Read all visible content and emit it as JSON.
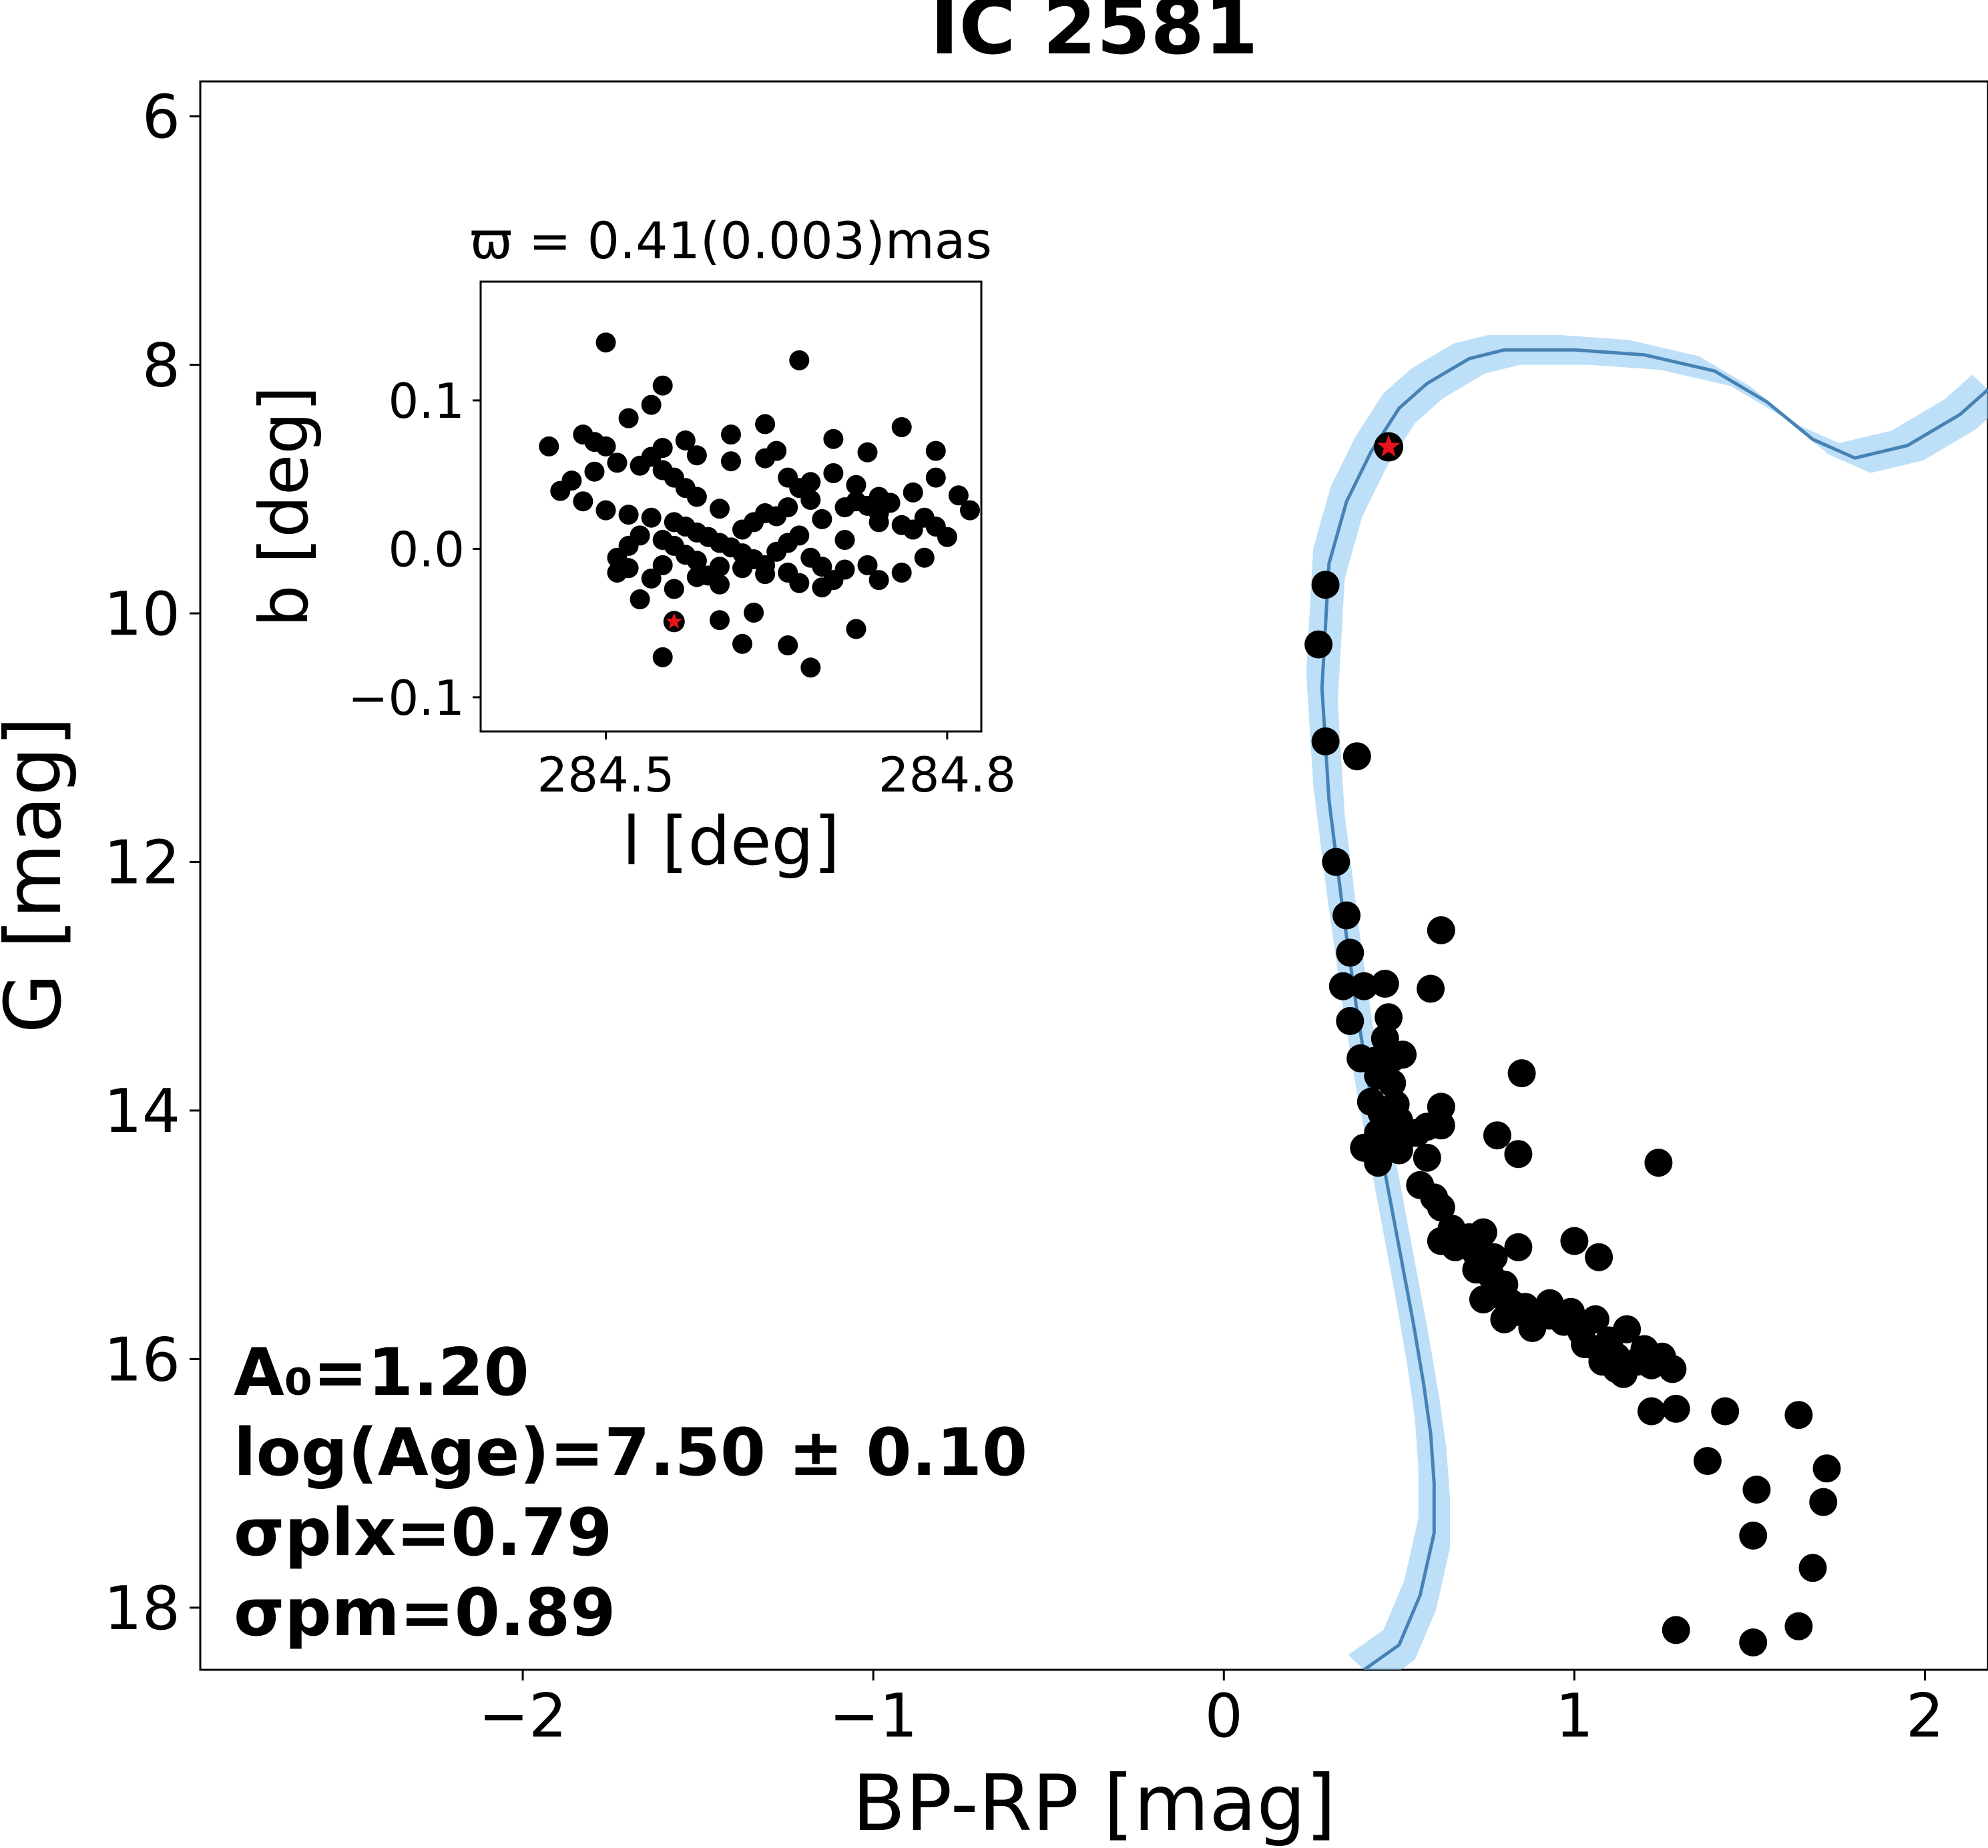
{
  "chart_data": [
    {
      "type": "scatter",
      "title": "IC 2581",
      "xlabel": "BP-RP [mag]",
      "ylabel": "G [mag]",
      "xlim": [
        -2.92,
        2.18
      ],
      "ylim": [
        18.5,
        5.72
      ],
      "y_inverted": true,
      "xticks": [
        -2,
        -1,
        0,
        1,
        2
      ],
      "xtick_labels": [
        "−2",
        "−1",
        "0",
        "1",
        "2"
      ],
      "yticks": [
        6,
        8,
        10,
        12,
        14,
        16,
        18
      ],
      "ytick_labels": [
        "6",
        "8",
        "10",
        "12",
        "14",
        "16",
        "18"
      ],
      "colors": {
        "members": "#000000",
        "isochrone_line": "#4682b4",
        "isochrone_band": "#87c5f0",
        "highlight_star": "#e8141c"
      },
      "annotations": {
        "a0": "A₀=1.20",
        "age": "log(Age)=7.50 ± 0.10",
        "sigma_plx": "σplx=0.79",
        "sigma_pm": "σpm=0.89"
      },
      "highlight_star": {
        "x": 0.47,
        "y": 8.66
      },
      "series": [
        {
          "type": "scatter",
          "points": [
            [
              0.29,
              9.77
            ],
            [
              0.27,
              10.25
            ],
            [
              0.29,
              11.03
            ],
            [
              0.38,
              11.15
            ],
            [
              0.32,
              12.0
            ],
            [
              0.35,
              12.43
            ],
            [
              0.36,
              12.73
            ],
            [
              0.34,
              13.0
            ],
            [
              0.36,
              13.28
            ],
            [
              0.4,
              13.0
            ],
            [
              0.46,
              12.98
            ],
            [
              0.47,
              13.25
            ],
            [
              0.46,
              13.42
            ],
            [
              0.48,
              13.58
            ],
            [
              0.39,
              13.58
            ],
            [
              0.43,
              13.6
            ],
            [
              0.51,
              13.55
            ],
            [
              0.44,
              13.72
            ],
            [
              0.48,
              13.78
            ],
            [
              0.49,
              13.95
            ],
            [
              0.42,
              13.93
            ],
            [
              0.45,
              14.02
            ],
            [
              0.5,
              14.08
            ],
            [
              0.44,
              14.18
            ],
            [
              0.51,
              14.22
            ],
            [
              0.46,
              14.28
            ],
            [
              0.4,
              14.3
            ],
            [
              0.5,
              14.32
            ],
            [
              0.44,
              14.42
            ],
            [
              0.55,
              14.18
            ],
            [
              0.58,
              14.38
            ],
            [
              0.58,
              14.13
            ],
            [
              0.62,
              14.12
            ],
            [
              0.62,
              13.97
            ],
            [
              0.59,
              13.02
            ],
            [
              0.62,
              12.55
            ],
            [
              0.78,
              14.2
            ],
            [
              0.84,
              14.35
            ],
            [
              0.85,
              13.7
            ],
            [
              1.24,
              14.42
            ],
            [
              0.56,
              14.6
            ],
            [
              0.6,
              14.7
            ],
            [
              0.62,
              14.78
            ],
            [
              0.65,
              14.95
            ],
            [
              0.62,
              15.05
            ],
            [
              0.66,
              15.1
            ],
            [
              0.7,
              15.02
            ],
            [
              0.72,
              15.15
            ],
            [
              0.74,
              14.98
            ],
            [
              0.77,
              15.18
            ],
            [
              0.72,
              15.28
            ],
            [
              0.76,
              15.32
            ],
            [
              0.8,
              15.4
            ],
            [
              0.78,
              15.48
            ],
            [
              0.74,
              15.52
            ],
            [
              0.82,
              15.55
            ],
            [
              0.84,
              15.62
            ],
            [
              0.86,
              15.58
            ],
            [
              0.8,
              15.68
            ],
            [
              0.84,
              15.1
            ],
            [
              0.88,
              15.75
            ],
            [
              0.93,
              15.65
            ],
            [
              0.97,
              15.7
            ],
            [
              0.99,
              15.62
            ],
            [
              1.02,
              15.78
            ],
            [
              1.06,
              15.68
            ],
            [
              1.03,
              15.88
            ],
            [
              1.07,
              15.92
            ],
            [
              1.1,
              15.85
            ],
            [
              1.12,
              15.98
            ],
            [
              1.15,
              15.76
            ],
            [
              1.18,
              16.02
            ],
            [
              1.12,
              16.08
            ],
            [
              1.2,
              15.92
            ],
            [
              1.22,
              16.05
            ],
            [
              1.14,
              16.12
            ],
            [
              1.08,
              16.02
            ],
            [
              1.25,
              15.98
            ],
            [
              1.28,
              16.08
            ],
            [
              1.0,
              15.05
            ],
            [
              1.07,
              15.18
            ],
            [
              0.93,
              15.55
            ],
            [
              1.22,
              16.42
            ],
            [
              1.29,
              16.4
            ],
            [
              1.43,
              16.42
            ],
            [
              1.38,
              16.82
            ],
            [
              1.52,
              17.05
            ],
            [
              1.51,
              17.42
            ],
            [
              1.64,
              16.45
            ],
            [
              1.72,
              16.88
            ],
            [
              1.71,
              17.15
            ],
            [
              1.68,
              17.68
            ],
            [
              1.64,
              18.15
            ],
            [
              1.29,
              18.18
            ],
            [
              1.51,
              18.28
            ]
          ]
        },
        {
          "type": "line",
          "name": "",
          "points": [
            [
              0.4,
              18.5
            ],
            [
              0.5,
              18.3
            ],
            [
              0.56,
              17.9
            ],
            [
              0.6,
              17.4
            ],
            [
              0.6,
              17.0
            ],
            [
              0.59,
              16.6
            ],
            [
              0.57,
              16.2
            ],
            [
              0.54,
              15.7
            ],
            [
              0.5,
              15.1
            ],
            [
              0.46,
              14.5
            ],
            [
              0.42,
              13.9
            ],
            [
              0.38,
              13.2
            ],
            [
              0.34,
              12.4
            ],
            [
              0.3,
              11.5
            ],
            [
              0.28,
              10.6
            ],
            [
              0.3,
              9.6
            ],
            [
              0.35,
              9.1
            ],
            [
              0.42,
              8.7
            ],
            [
              0.5,
              8.35
            ],
            [
              0.58,
              8.15
            ],
            [
              0.7,
              7.95
            ],
            [
              0.8,
              7.88
            ],
            [
              1.0,
              7.88
            ],
            [
              1.2,
              7.92
            ],
            [
              1.4,
              8.05
            ],
            [
              1.55,
              8.3
            ],
            [
              1.68,
              8.6
            ],
            [
              1.8,
              8.75
            ],
            [
              1.95,
              8.65
            ],
            [
              2.1,
              8.4
            ],
            [
              2.18,
              8.2
            ]
          ]
        }
      ]
    },
    {
      "type": "scatter",
      "title": "ϖ = 0.41(0.003)mas",
      "xlabel": "l [deg]",
      "ylabel": "b [deg]",
      "xlim": [
        284.39,
        284.83
      ],
      "ylim": [
        -0.123,
        0.18
      ],
      "xticks": [
        284.5,
        284.8
      ],
      "xtick_labels": [
        "284.5",
        "284.8"
      ],
      "yticks": [
        -0.1,
        0.0,
        0.1
      ],
      "ytick_labels": [
        "−0.1",
        "0.0",
        "0.1"
      ],
      "highlight_star": {
        "x": 284.56,
        "y": -0.049
      },
      "points": [
        [
          284.45,
          0.069
        ],
        [
          284.57,
          0.073
        ],
        [
          284.61,
          0.077
        ],
        [
          284.52,
          0.088
        ],
        [
          284.64,
          0.084
        ],
        [
          284.54,
          0.097
        ],
        [
          284.55,
          0.11
        ],
        [
          284.5,
          0.139
        ],
        [
          284.67,
          0.127
        ],
        [
          284.7,
          0.074
        ],
        [
          284.73,
          0.065
        ],
        [
          284.48,
          0.077
        ],
        [
          284.49,
          0.072
        ],
        [
          284.5,
          0.069
        ],
        [
          284.54,
          0.062
        ],
        [
          284.55,
          0.068
        ],
        [
          284.58,
          0.063
        ],
        [
          284.61,
          0.059
        ],
        [
          284.64,
          0.061
        ],
        [
          284.65,
          0.066
        ],
        [
          284.66,
          0.048
        ],
        [
          284.67,
          0.041
        ],
        [
          284.68,
          0.045
        ],
        [
          284.7,
          0.051
        ],
        [
          284.72,
          0.043
        ],
        [
          284.74,
          0.035
        ],
        [
          284.68,
          0.033
        ],
        [
          284.66,
          0.028
        ],
        [
          284.65,
          0.022
        ],
        [
          284.64,
          0.024
        ],
        [
          284.63,
          0.018
        ],
        [
          284.62,
          0.013
        ],
        [
          284.6,
          0.027
        ],
        [
          284.58,
          0.035
        ],
        [
          284.57,
          0.041
        ],
        [
          284.56,
          0.048
        ],
        [
          284.55,
          0.053
        ],
        [
          284.53,
          0.056
        ],
        [
          284.51,
          0.058
        ],
        [
          284.49,
          0.052
        ],
        [
          284.47,
          0.046
        ],
        [
          284.46,
          0.039
        ],
        [
          284.48,
          0.032
        ],
        [
          284.5,
          0.026
        ],
        [
          284.52,
          0.023
        ],
        [
          284.54,
          0.021
        ],
        [
          284.56,
          0.018
        ],
        [
          284.57,
          0.015
        ],
        [
          284.58,
          0.011
        ],
        [
          284.59,
          0.008
        ],
        [
          284.6,
          0.004
        ],
        [
          284.61,
          0.001
        ],
        [
          284.62,
          -0.003
        ],
        [
          284.63,
          -0.007
        ],
        [
          284.64,
          -0.011
        ],
        [
          284.65,
          -0.002
        ],
        [
          284.66,
          0.004
        ],
        [
          284.67,
          0.009
        ],
        [
          284.68,
          -0.006
        ],
        [
          284.69,
          -0.012
        ],
        [
          284.7,
          -0.021
        ],
        [
          284.71,
          0.006
        ],
        [
          284.74,
          0.018
        ],
        [
          284.76,
          0.016
        ],
        [
          284.77,
          0.013
        ],
        [
          284.78,
          0.021
        ],
        [
          284.79,
          0.015
        ],
        [
          284.6,
          -0.012
        ],
        [
          284.59,
          -0.018
        ],
        [
          284.58,
          -0.008
        ],
        [
          284.57,
          -0.004
        ],
        [
          284.56,
          0.002
        ],
        [
          284.55,
          0.006
        ],
        [
          284.53,
          0.009
        ],
        [
          284.52,
          0.002
        ],
        [
          284.51,
          -0.006
        ],
        [
          284.52,
          -0.013
        ],
        [
          284.51,
          -0.016
        ],
        [
          284.55,
          -0.011
        ],
        [
          284.58,
          -0.019
        ],
        [
          284.6,
          -0.024
        ],
        [
          284.62,
          -0.013
        ],
        [
          284.64,
          -0.017
        ],
        [
          284.66,
          -0.016
        ],
        [
          284.67,
          -0.023
        ],
        [
          284.69,
          -0.026
        ],
        [
          284.71,
          -0.014
        ],
        [
          284.73,
          -0.011
        ],
        [
          284.69,
          0.02
        ],
        [
          284.71,
          0.028
        ],
        [
          284.72,
          0.032
        ],
        [
          284.73,
          0.029
        ],
        [
          284.74,
          0.024
        ],
        [
          284.75,
          0.031
        ],
        [
          284.77,
          0.038
        ],
        [
          284.79,
          0.048
        ],
        [
          284.81,
          0.036
        ],
        [
          284.82,
          0.026
        ],
        [
          284.8,
          0.008
        ],
        [
          284.78,
          -0.006
        ],
        [
          284.76,
          -0.016
        ],
        [
          284.74,
          -0.021
        ],
        [
          284.63,
          -0.043
        ],
        [
          284.66,
          -0.065
        ],
        [
          284.62,
          -0.064
        ],
        [
          284.68,
          -0.08
        ],
        [
          284.55,
          -0.073
        ],
        [
          284.72,
          -0.054
        ],
        [
          284.6,
          -0.048
        ],
        [
          284.56,
          -0.027
        ],
        [
          284.54,
          -0.02
        ],
        [
          284.53,
          -0.034
        ],
        [
          284.76,
          0.082
        ],
        [
          284.79,
          0.066
        ]
      ]
    }
  ]
}
